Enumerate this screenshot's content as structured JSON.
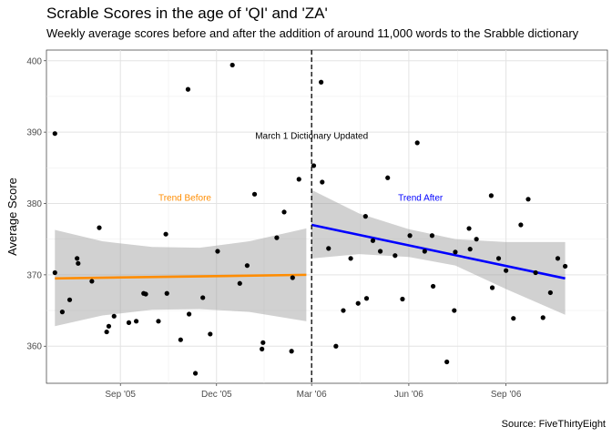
{
  "chart_data": {
    "type": "scatter",
    "title": "Scrable Scores in the age of 'QI' and 'ZA'",
    "subtitle": "Weekly average scores before and after the addition of around 11,000 words to the Srabble dictionary",
    "caption": "Source: FiveThirtyEight",
    "xlabel": "",
    "ylabel": "Average Score",
    "xlim": [
      "2005-06-23",
      "2006-12-06"
    ],
    "ylim": [
      354.8,
      401.5
    ],
    "x_ticks": [
      {
        "date": "2005-09-01",
        "label": "Sep '05"
      },
      {
        "date": "2005-12-01",
        "label": "Dec '05"
      },
      {
        "date": "2006-03-01",
        "label": "Mar '06"
      },
      {
        "date": "2006-06-01",
        "label": "Jun '06"
      },
      {
        "date": "2006-09-01",
        "label": "Sep '06"
      }
    ],
    "y_ticks": [
      360,
      370,
      380,
      390,
      400
    ],
    "grid": true,
    "points": [
      {
        "x": "2005-07-01",
        "y": 389.8
      },
      {
        "x": "2005-07-01",
        "y": 370.3
      },
      {
        "x": "2005-07-08",
        "y": 364.8
      },
      {
        "x": "2005-07-15",
        "y": 366.5
      },
      {
        "x": "2005-07-22",
        "y": 372.3
      },
      {
        "x": "2005-07-23",
        "y": 371.6
      },
      {
        "x": "2005-08-05",
        "y": 369.1
      },
      {
        "x": "2005-08-12",
        "y": 376.6
      },
      {
        "x": "2005-08-19",
        "y": 362.0
      },
      {
        "x": "2005-08-21",
        "y": 362.8
      },
      {
        "x": "2005-08-26",
        "y": 364.2
      },
      {
        "x": "2005-09-09",
        "y": 363.3
      },
      {
        "x": "2005-09-16",
        "y": 363.5
      },
      {
        "x": "2005-09-23",
        "y": 367.4
      },
      {
        "x": "2005-09-25",
        "y": 367.3
      },
      {
        "x": "2005-10-07",
        "y": 363.5
      },
      {
        "x": "2005-10-14",
        "y": 375.7
      },
      {
        "x": "2005-10-15",
        "y": 367.4
      },
      {
        "x": "2005-10-28",
        "y": 360.9
      },
      {
        "x": "2005-11-04",
        "y": 396.0
      },
      {
        "x": "2005-11-05",
        "y": 364.5
      },
      {
        "x": "2005-11-11",
        "y": 356.2
      },
      {
        "x": "2005-11-18",
        "y": 366.8
      },
      {
        "x": "2005-11-25",
        "y": 361.7
      },
      {
        "x": "2005-12-02",
        "y": 373.3
      },
      {
        "x": "2005-12-16",
        "y": 399.4
      },
      {
        "x": "2005-12-23",
        "y": 368.8
      },
      {
        "x": "2005-12-30",
        "y": 371.3
      },
      {
        "x": "2006-01-06",
        "y": 381.3
      },
      {
        "x": "2006-01-13",
        "y": 359.6
      },
      {
        "x": "2006-01-14",
        "y": 360.5
      },
      {
        "x": "2006-01-27",
        "y": 375.2
      },
      {
        "x": "2006-02-03",
        "y": 378.8
      },
      {
        "x": "2006-02-10",
        "y": 359.3
      },
      {
        "x": "2006-02-11",
        "y": 369.6
      },
      {
        "x": "2006-02-17",
        "y": 383.4
      },
      {
        "x": "2006-03-03",
        "y": 385.3
      },
      {
        "x": "2006-03-10",
        "y": 397.0
      },
      {
        "x": "2006-03-11",
        "y": 383.0
      },
      {
        "x": "2006-03-17",
        "y": 373.7
      },
      {
        "x": "2006-03-24",
        "y": 360.0
      },
      {
        "x": "2006-03-31",
        "y": 365.0
      },
      {
        "x": "2006-04-07",
        "y": 372.3
      },
      {
        "x": "2006-04-14",
        "y": 366.0
      },
      {
        "x": "2006-04-21",
        "y": 378.2
      },
      {
        "x": "2006-04-22",
        "y": 366.7
      },
      {
        "x": "2006-04-28",
        "y": 374.8
      },
      {
        "x": "2006-05-05",
        "y": 373.3
      },
      {
        "x": "2006-05-12",
        "y": 383.6
      },
      {
        "x": "2006-05-19",
        "y": 372.7
      },
      {
        "x": "2006-05-26",
        "y": 366.6
      },
      {
        "x": "2006-06-02",
        "y": 375.5
      },
      {
        "x": "2006-06-09",
        "y": 388.5
      },
      {
        "x": "2006-06-16",
        "y": 373.3
      },
      {
        "x": "2006-06-23",
        "y": 375.5
      },
      {
        "x": "2006-06-24",
        "y": 368.4
      },
      {
        "x": "2006-07-07",
        "y": 357.8
      },
      {
        "x": "2006-07-14",
        "y": 365.0
      },
      {
        "x": "2006-07-15",
        "y": 373.2
      },
      {
        "x": "2006-07-28",
        "y": 376.5
      },
      {
        "x": "2006-07-29",
        "y": 373.6
      },
      {
        "x": "2006-08-04",
        "y": 375.0
      },
      {
        "x": "2006-08-18",
        "y": 381.1
      },
      {
        "x": "2006-08-19",
        "y": 368.2
      },
      {
        "x": "2006-08-25",
        "y": 372.3
      },
      {
        "x": "2006-09-01",
        "y": 370.6
      },
      {
        "x": "2006-09-08",
        "y": 363.9
      },
      {
        "x": "2006-09-15",
        "y": 377.0
      },
      {
        "x": "2006-09-22",
        "y": 380.6
      },
      {
        "x": "2006-09-29",
        "y": 370.3
      },
      {
        "x": "2006-10-06",
        "y": 364.0
      },
      {
        "x": "2006-10-13",
        "y": 367.5
      },
      {
        "x": "2006-10-20",
        "y": 372.3
      },
      {
        "x": "2006-10-27",
        "y": 371.2
      }
    ],
    "vline": {
      "x": "2006-03-01",
      "label": "March 1 Dictionary Updated",
      "label_y": 389.5
    },
    "trends": [
      {
        "label": "Trend Before",
        "color": "#ff8c00",
        "label_pos": {
          "x": "2005-11-01",
          "y": 380.8
        },
        "line": [
          {
            "x": "2005-07-01",
            "y": 369.5
          },
          {
            "x": "2006-02-24",
            "y": 370.0
          }
        ],
        "band_x": [
          "2005-07-01",
          "2005-08-15",
          "2005-10-01",
          "2005-11-15",
          "2006-01-01",
          "2006-02-24"
        ],
        "band_upper": [
          376.3,
          374.7,
          373.9,
          373.8,
          374.7,
          376.5
        ],
        "band_lower": [
          362.8,
          364.3,
          365.1,
          365.2,
          364.8,
          363.5
        ]
      },
      {
        "label": "Trend After",
        "color": "#0000ff",
        "label_pos": {
          "x": "2006-06-12",
          "y": 380.8
        },
        "line": [
          {
            "x": "2006-03-01",
            "y": 377.0
          },
          {
            "x": "2006-10-27",
            "y": 369.5
          }
        ],
        "band_x": [
          "2006-03-01",
          "2006-04-15",
          "2006-06-01",
          "2006-07-15",
          "2006-09-01",
          "2006-10-27"
        ],
        "band_upper": [
          381.9,
          378.6,
          376.4,
          375.0,
          374.6,
          374.6
        ],
        "band_lower": [
          372.3,
          372.9,
          372.5,
          371.3,
          368.0,
          364.4
        ]
      }
    ]
  }
}
